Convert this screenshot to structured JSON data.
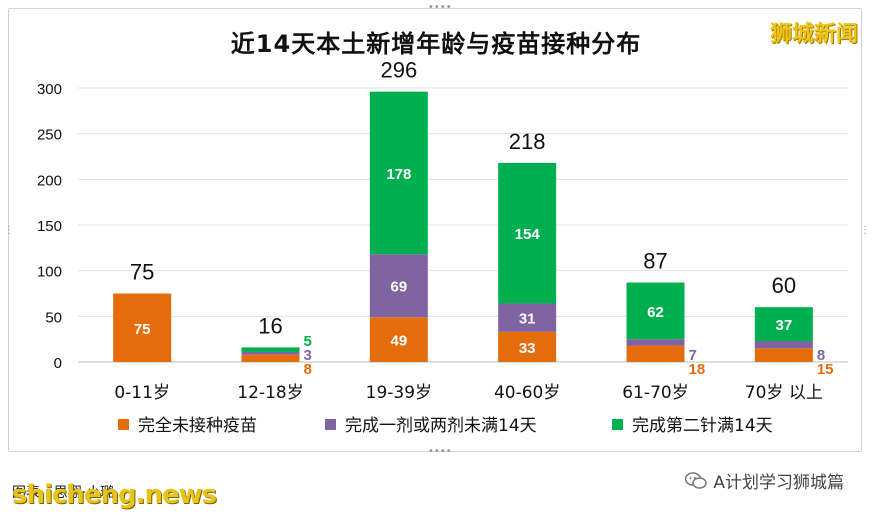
{
  "brand": "狮城新闻",
  "footer": {
    "caption": "图表 : 思翔·小璐",
    "site": "shicheng.news",
    "wechat": "A计划学习狮城篇"
  },
  "colors": {
    "unvaccinated": "#e46c0a",
    "partial": "#8064a2",
    "full": "#00b050",
    "total_label": "#111111"
  },
  "chart_data": {
    "type": "bar",
    "stacked": true,
    "title": "近14天本土新增年龄与疫苗接种分布",
    "categories": [
      "0-11岁",
      "12-18岁",
      "19-39岁",
      "40-60岁",
      "61-70岁",
      "70岁 以上"
    ],
    "series": [
      {
        "name": "完全未接种疫苗",
        "values": [
          75,
          8,
          49,
          33,
          18,
          15
        ]
      },
      {
        "name": "完成一剂或两剂未满14天",
        "values": [
          0,
          3,
          69,
          31,
          7,
          8
        ]
      },
      {
        "name": "完成第二针满14天",
        "values": [
          0,
          5,
          178,
          154,
          62,
          37
        ]
      }
    ],
    "totals": [
      75,
      16,
      296,
      218,
      87,
      60
    ],
    "ylim": [
      0,
      300
    ],
    "yticks": [
      0,
      50,
      100,
      150,
      200,
      250,
      300
    ],
    "grid": true,
    "legend": "bottom"
  }
}
